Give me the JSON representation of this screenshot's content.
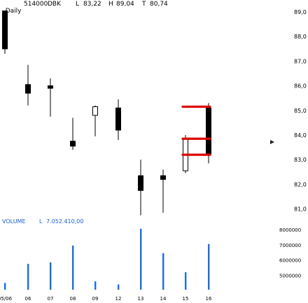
{
  "header": {
    "period": "Daily",
    "code": "514000",
    "symbol": "DBK",
    "low_label": "L",
    "low_value": "83,22",
    "high_label": "H",
    "high_value": "89,04",
    "last_label": "T",
    "last_value": "80,74"
  },
  "volume_header": {
    "label": "VOLUME",
    "low_label": "L",
    "low_value": "7.052.410,00"
  },
  "chart_data": {
    "type": "candlestick",
    "price_ticks": [
      "89,0",
      "88,0",
      "87,0",
      "86,0",
      "85,0",
      "84,0",
      "83,0",
      "82,0",
      "81,0"
    ],
    "price_tick_values": [
      89,
      88,
      87,
      86,
      85,
      84,
      83,
      82,
      81
    ],
    "volume_ticks": [
      "8000000",
      "7000000",
      "6000000",
      "5000000"
    ],
    "volume_tick_values": [
      8000000,
      7000000,
      6000000,
      5000000
    ],
    "x_labels": [
      "05/06",
      "06",
      "07",
      "08",
      "09",
      "12",
      "13",
      "14",
      "15",
      "16"
    ],
    "candles": [
      {
        "x": "05/06",
        "open": 89.04,
        "high": 89.04,
        "low": 87.3,
        "close": 87.5
      },
      {
        "x": "06",
        "open": 86.05,
        "high": 86.85,
        "low": 85.2,
        "close": 85.7
      },
      {
        "x": "07",
        "open": 86.0,
        "high": 86.3,
        "low": 84.75,
        "close": 85.9
      },
      {
        "x": "08",
        "open": 83.75,
        "high": 84.7,
        "low": 83.4,
        "close": 83.55
      },
      {
        "x": "09",
        "open": 84.8,
        "high": 85.2,
        "low": 83.95,
        "close": 85.15
      },
      {
        "x": "12",
        "open": 85.1,
        "high": 85.45,
        "low": 83.8,
        "close": 84.2
      },
      {
        "x": "13",
        "open": 82.35,
        "high": 83.0,
        "low": 80.74,
        "close": 81.75
      },
      {
        "x": "14",
        "open": 82.35,
        "high": 82.6,
        "low": 80.85,
        "close": 82.2
      },
      {
        "x": "15",
        "open": 82.55,
        "high": 84.0,
        "low": 82.45,
        "close": 83.85
      },
      {
        "x": "16",
        "open": 85.1,
        "high": 85.3,
        "low": 82.85,
        "close": 83.22
      }
    ],
    "volume": [
      4500000,
      5750000,
      5850000,
      6950000,
      4600000,
      4400000,
      8050000,
      6450000,
      5200000,
      7050000
    ],
    "annotations": [
      {
        "type": "level",
        "value": 85.15,
        "color": "#e00000"
      },
      {
        "type": "level",
        "value": 83.85,
        "color": "#e00000"
      },
      {
        "type": "level",
        "value": 83.2,
        "color": "#e00000"
      }
    ],
    "colors": {
      "candle": "#000000",
      "volume": "#1a6fe0",
      "annotation": "#e00000"
    }
  }
}
